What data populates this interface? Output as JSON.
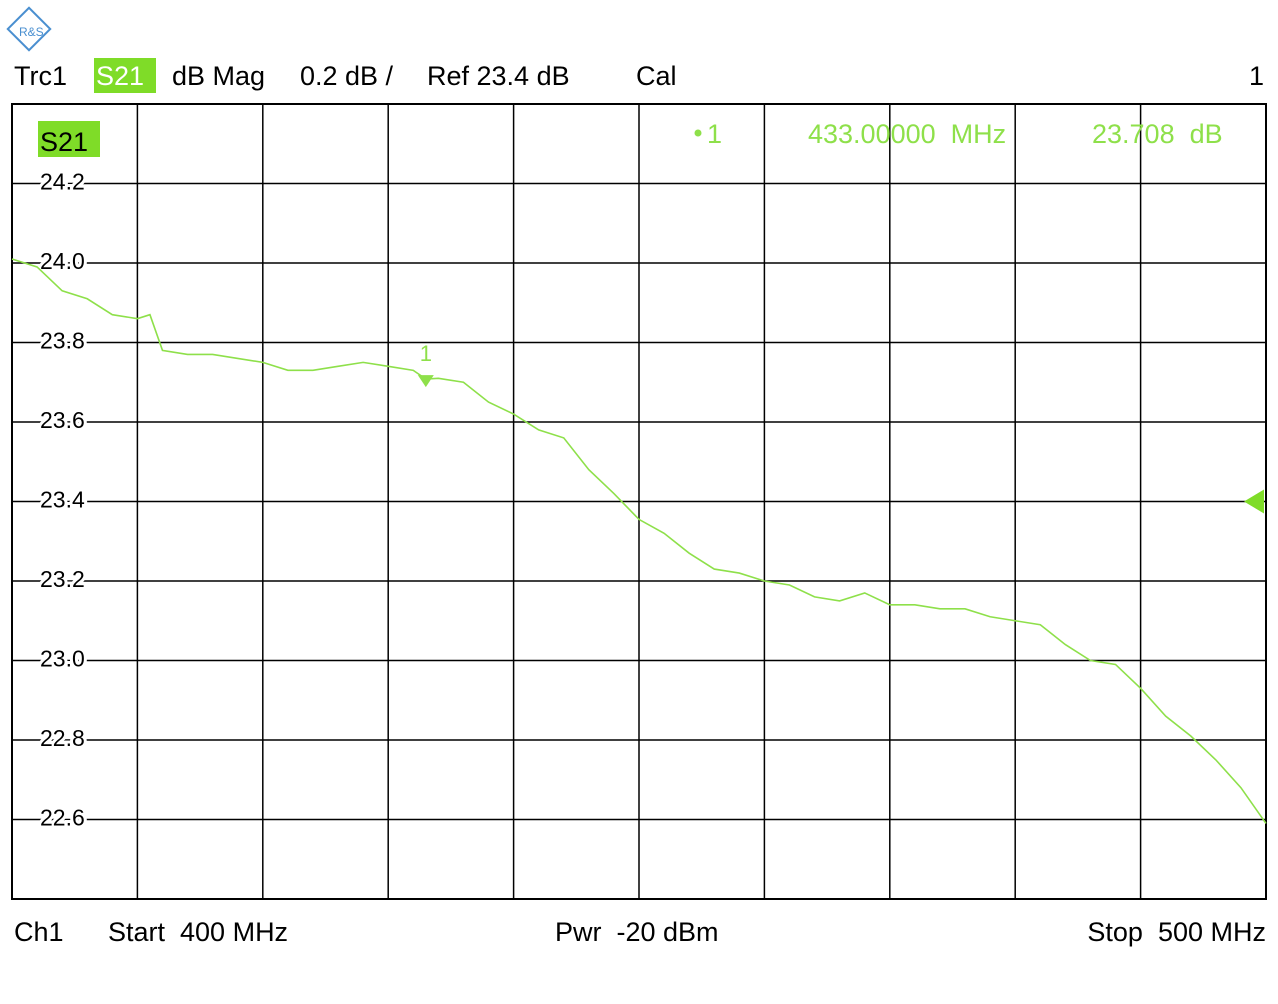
{
  "chart_data": {
    "type": "line",
    "header": {
      "trace": "Trc1",
      "param": "S21",
      "format": "dB Mag",
      "scale": "0.2 dB /",
      "ref": "Ref 23.4 dB",
      "cal": "Cal",
      "channel_no": "1"
    },
    "footer": {
      "channel": "Ch1",
      "start": "Start  400 MHz",
      "power": "Pwr  -20 dBm",
      "stop": "Stop  500 MHz"
    },
    "trace_label": "S21",
    "ref_level": 23.4,
    "x": [
      400,
      402,
      404,
      406,
      408,
      410,
      411,
      412,
      414,
      416,
      418,
      420,
      422,
      424,
      426,
      428,
      430,
      432,
      433,
      434,
      436,
      438,
      440,
      442,
      444,
      446,
      448,
      450,
      452,
      454,
      456,
      458,
      460,
      462,
      464,
      466,
      468,
      470,
      472,
      474,
      476,
      478,
      480,
      482,
      484,
      486,
      488,
      490,
      492,
      494,
      496,
      498,
      500
    ],
    "series": [
      {
        "name": "S21",
        "color": "#8ee04a",
        "values": [
          24.01,
          23.99,
          23.93,
          23.91,
          23.87,
          23.86,
          23.87,
          23.78,
          23.77,
          23.77,
          23.76,
          23.75,
          23.73,
          23.73,
          23.74,
          23.75,
          23.74,
          23.73,
          23.708,
          23.71,
          23.7,
          23.65,
          23.62,
          23.58,
          23.56,
          23.48,
          23.42,
          23.355,
          23.32,
          23.27,
          23.23,
          23.22,
          23.2,
          23.19,
          23.16,
          23.15,
          23.17,
          23.14,
          23.14,
          23.13,
          23.13,
          23.11,
          23.1,
          23.09,
          23.04,
          23.0,
          22.99,
          22.93,
          22.86,
          22.81,
          22.75,
          22.68,
          22.59
        ]
      }
    ],
    "marker": {
      "label": "1",
      "x": 433,
      "y": 23.708,
      "freq_label": "433.00000  MHz",
      "value_label": "23.708  dB"
    },
    "xlim": [
      400,
      500
    ],
    "xticks": [
      400,
      410,
      420,
      430,
      440,
      450,
      460,
      470,
      480,
      490,
      500
    ],
    "ylim": [
      22.4,
      24.4
    ],
    "yticks": [
      22.6,
      22.8,
      {
        "value": 23,
        "label": "23.0"
      },
      23.2,
      23.4,
      23.6,
      23.8,
      {
        "value": 24,
        "label": "24.0"
      },
      24.2
    ],
    "grid": true
  }
}
